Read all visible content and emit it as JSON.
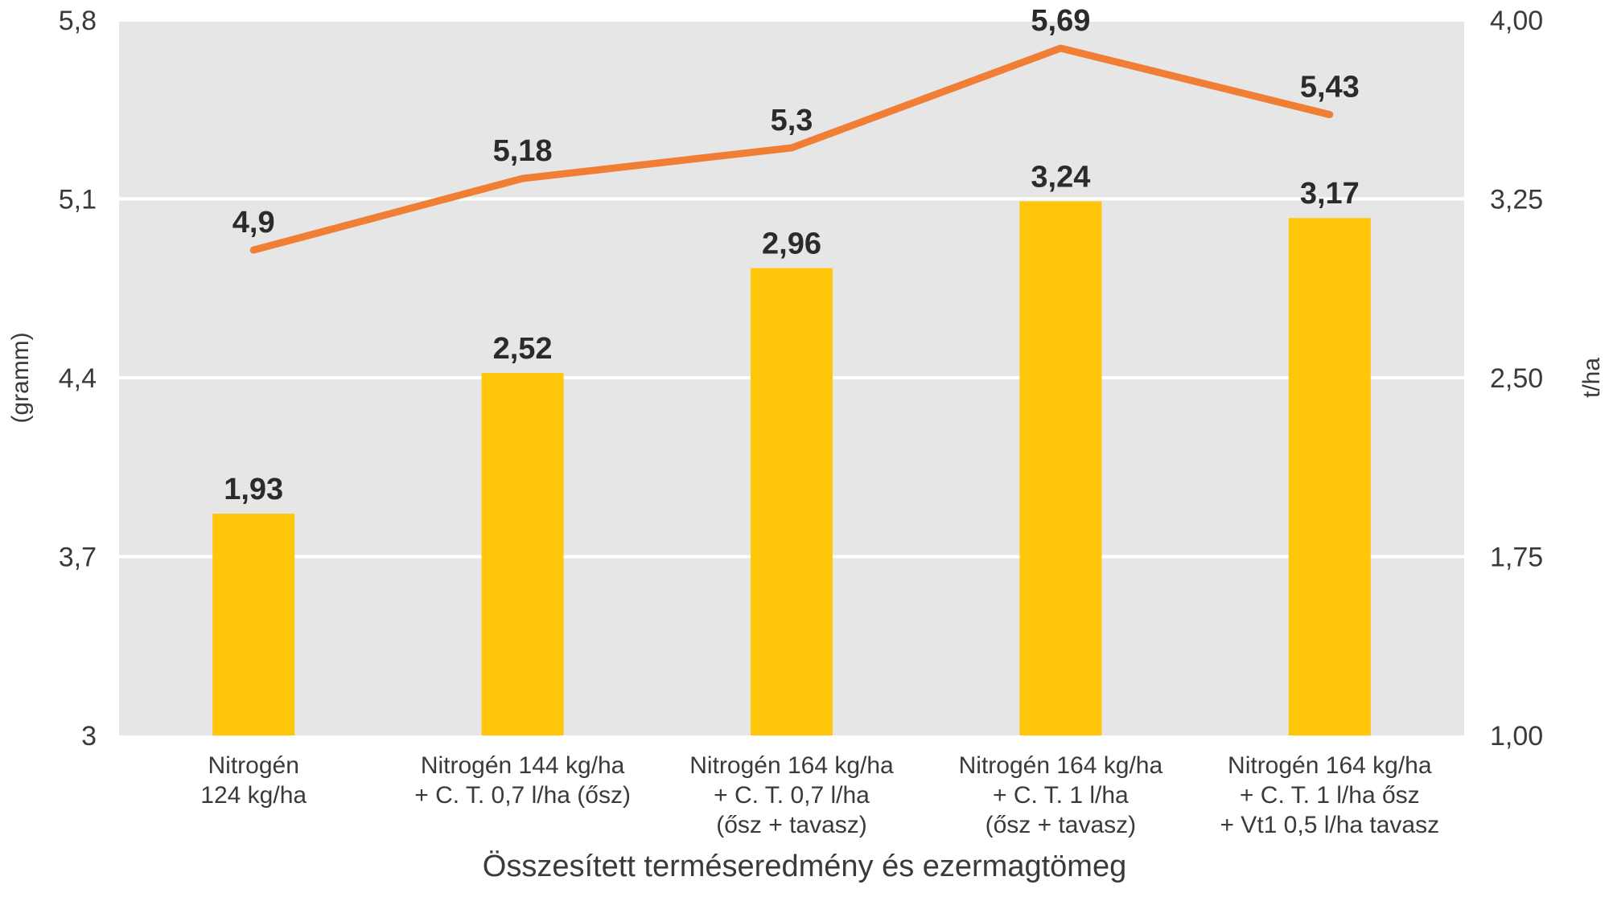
{
  "chart_data": {
    "type": "bar",
    "title": "Összesített terméseredmény és ezermagtömeg",
    "categories": [
      [
        "Nitrogén",
        "124 kg/ha"
      ],
      [
        "Nitrogén 144 kg/ha",
        "+ C. T. 0,7 l/ha (ősz)"
      ],
      [
        "Nitrogén 164 kg/ha",
        "+ C. T. 0,7 l/ha",
        "(ősz + tavasz)"
      ],
      [
        "Nitrogén 164 kg/ha",
        "+ C. T. 1 l/ha",
        "(ősz + tavasz)"
      ],
      [
        "Nitrogén 164 kg/ha",
        "+ C. T. 1 l/ha ősz",
        "+ Vt1 0,5 l/ha tavasz"
      ]
    ],
    "series": [
      {
        "type": "bar",
        "axis": "right",
        "values": [
          1.93,
          2.52,
          2.96,
          3.24,
          3.17
        ],
        "labels": [
          "1,93",
          "2,52",
          "2,96",
          "3,24",
          "3,17"
        ],
        "color": "#FFC60B"
      },
      {
        "type": "line",
        "axis": "left",
        "values": [
          4.9,
          5.18,
          5.3,
          5.69,
          5.43
        ],
        "labels": [
          "4,9",
          "5,18",
          "5,3",
          "5,69",
          "5,43"
        ],
        "color": "#F07F35"
      }
    ],
    "left_axis": {
      "label": "(gramm)",
      "range": [
        3,
        5.8
      ],
      "ticks": [
        3,
        3.7,
        4.4,
        5.1,
        5.8
      ],
      "tick_labels": [
        "3",
        "3,7",
        "4,4",
        "5,1",
        "5,8"
      ]
    },
    "right_axis": {
      "label": "t/ha",
      "range": [
        1.0,
        4.0
      ],
      "ticks": [
        1.0,
        1.75,
        2.5,
        3.25,
        4.0
      ],
      "tick_labels": [
        "1,00",
        "1,75",
        "2,50",
        "3,25",
        "4,00"
      ]
    },
    "plot_background": "#E6E6E6",
    "gridline_color": "#FFFFFF",
    "grid": true
  }
}
